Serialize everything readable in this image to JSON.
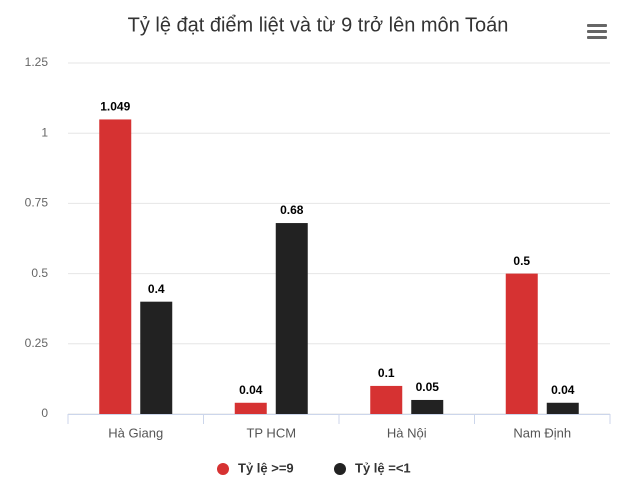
{
  "chart_data": {
    "type": "bar",
    "title": "Tỷ lệ đạt điểm liệt và từ 9 trở lên môn Toán",
    "categories": [
      "Hà Giang",
      "TP HCM",
      "Hà Nội",
      "Nam Định"
    ],
    "series": [
      {
        "name": "Tỷ lệ >=9",
        "color": "#d63232",
        "values": [
          1.049,
          0.04,
          0.1,
          0.5
        ]
      },
      {
        "name": "Tỷ lệ =<1",
        "color": "#222222",
        "values": [
          0.4,
          0.68,
          0.05,
          0.04
        ]
      }
    ],
    "ylim": [
      0,
      1.25
    ],
    "yticks": [
      0,
      0.25,
      0.5,
      0.75,
      1,
      1.25
    ],
    "grid": true,
    "legend": "bottom"
  }
}
